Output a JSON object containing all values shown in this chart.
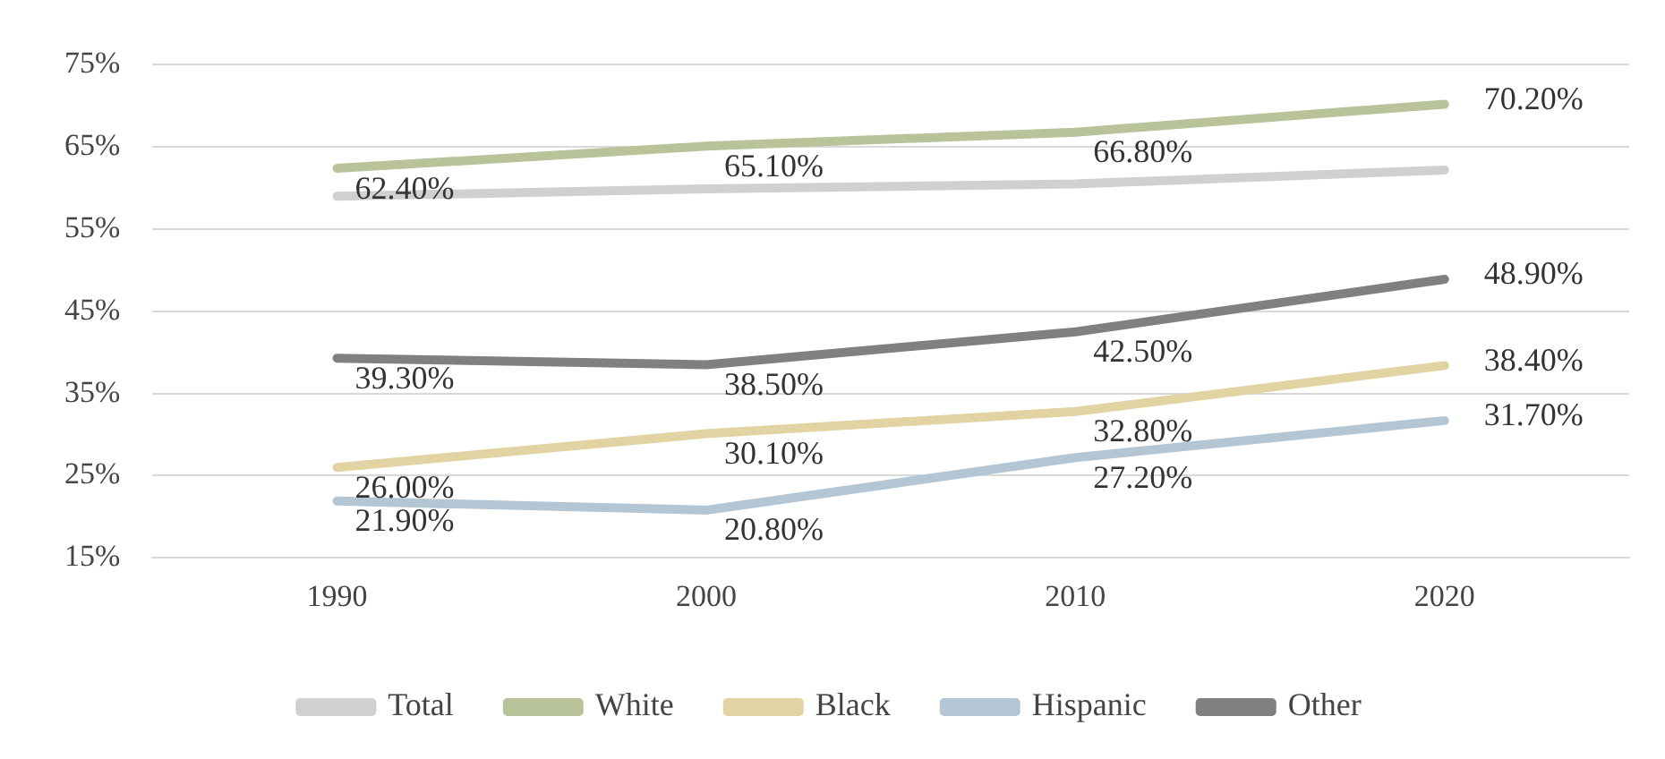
{
  "chart_data": {
    "type": "line",
    "categories": [
      "1990",
      "2000",
      "2010",
      "2020"
    ],
    "ylim": [
      15,
      75
    ],
    "yticks": [
      {
        "value": 15,
        "label": "15%"
      },
      {
        "value": 25,
        "label": "25%"
      },
      {
        "value": 35,
        "label": "35%"
      },
      {
        "value": 45,
        "label": "45%"
      },
      {
        "value": 55,
        "label": "55%"
      },
      {
        "value": 65,
        "label": "65%"
      },
      {
        "value": 75,
        "label": "75%"
      }
    ],
    "grid": "y",
    "legend": "bottom",
    "marker": "none",
    "line_style": "solid",
    "series": [
      {
        "name": "Total",
        "color": "#d0d0d0",
        "values": [
          59.0,
          59.9,
          60.5,
          62.2
        ]
      },
      {
        "name": "White",
        "color": "#b9c39a",
        "values": [
          62.4,
          65.1,
          66.8,
          70.2
        ],
        "value_labels": [
          "62.40%",
          "65.10%",
          "66.80%",
          "70.20%"
        ]
      },
      {
        "name": "Black",
        "color": "#e2d3a3",
        "values": [
          26.0,
          30.1,
          32.8,
          38.4
        ],
        "value_labels": [
          "26.00%",
          "30.10%",
          "32.80%",
          "38.40%"
        ]
      },
      {
        "name": "Hispanic",
        "color": "#b4c6d3",
        "values": [
          21.9,
          20.8,
          27.2,
          31.7
        ],
        "value_labels": [
          "21.90%",
          "20.80%",
          "27.20%",
          "31.70%"
        ]
      },
      {
        "name": "Other",
        "color": "#808080",
        "values": [
          39.3,
          38.5,
          42.5,
          48.9
        ],
        "value_labels": [
          "39.30%",
          "38.50%",
          "42.50%",
          "48.90%"
        ]
      }
    ]
  }
}
